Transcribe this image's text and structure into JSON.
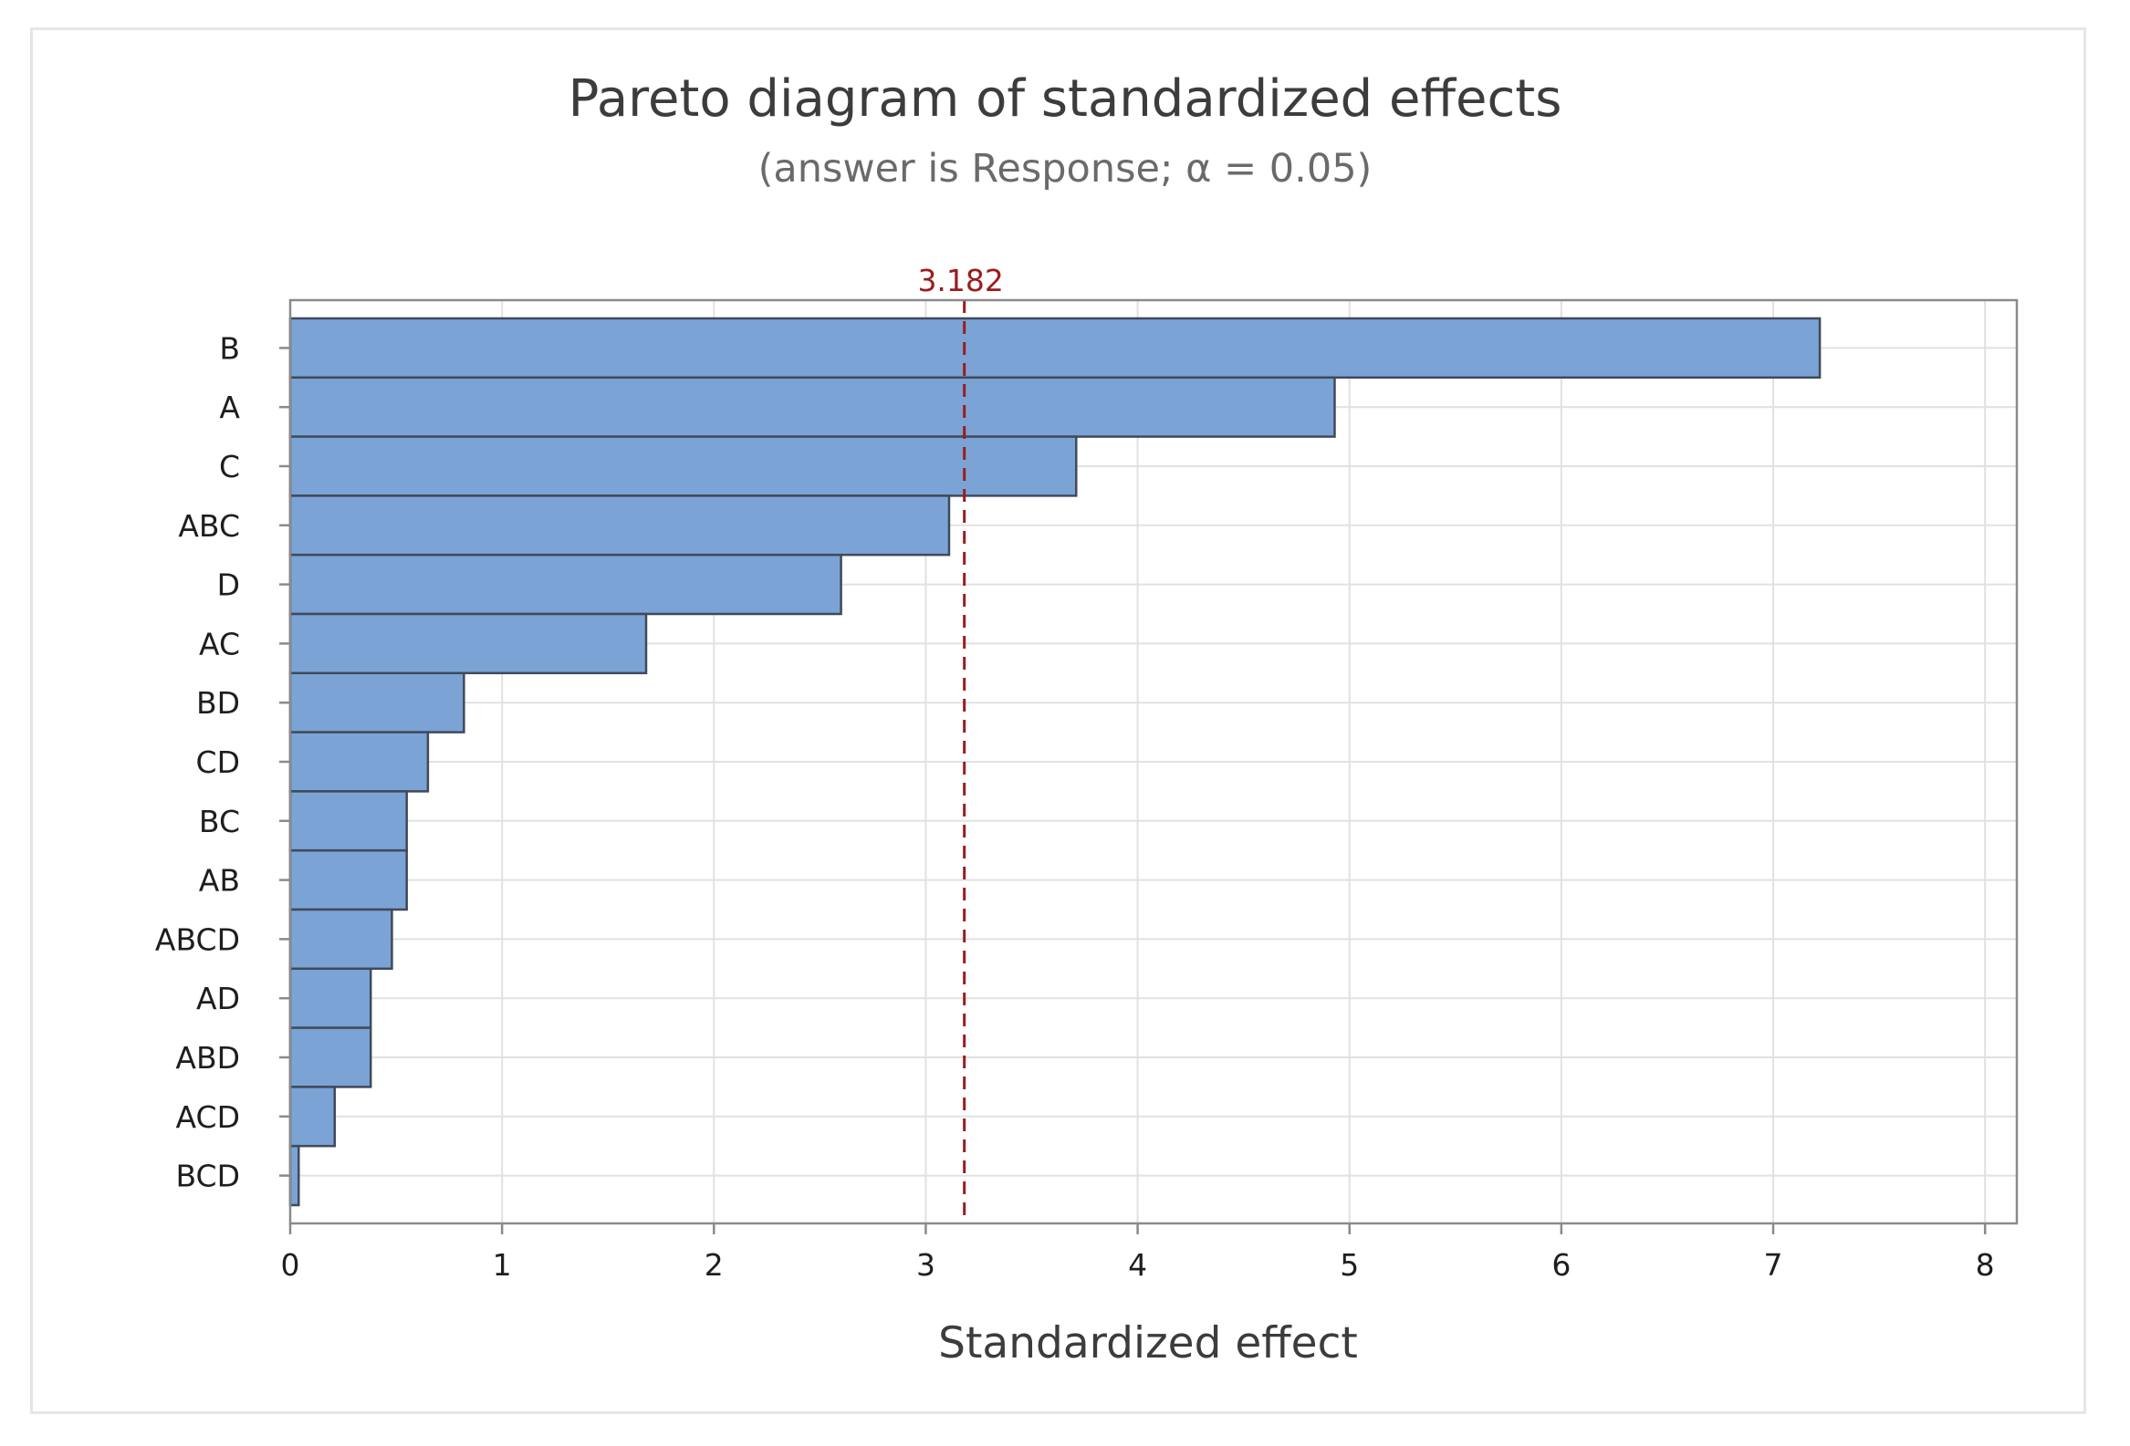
{
  "chart_data": {
    "type": "bar",
    "orientation": "horizontal",
    "title": "Pareto diagram of standardized effects",
    "subtitle": "(answer is Response; α = 0.05)",
    "xlabel": "Standardized effect",
    "ylabel": "",
    "xlim": [
      0,
      8.15
    ],
    "x_ticks": [
      0,
      1,
      2,
      3,
      4,
      5,
      6,
      7,
      8
    ],
    "categories": [
      "B",
      "A",
      "C",
      "ABC",
      "D",
      "AC",
      "BD",
      "CD",
      "BC",
      "AB",
      "ABCD",
      "AD",
      "ABD",
      "ACD",
      "BCD"
    ],
    "values": [
      7.22,
      4.93,
      3.71,
      3.11,
      2.6,
      1.68,
      0.82,
      0.65,
      0.55,
      0.55,
      0.48,
      0.38,
      0.38,
      0.21,
      0.04
    ],
    "reference_line": {
      "value": 3.182,
      "label": "3.182",
      "color": "#9b1c1c",
      "style": "dashed"
    },
    "bar_color": "#7ba3d6",
    "bar_edge_color": "#3f4a5a",
    "grid": true,
    "legend": "none"
  }
}
